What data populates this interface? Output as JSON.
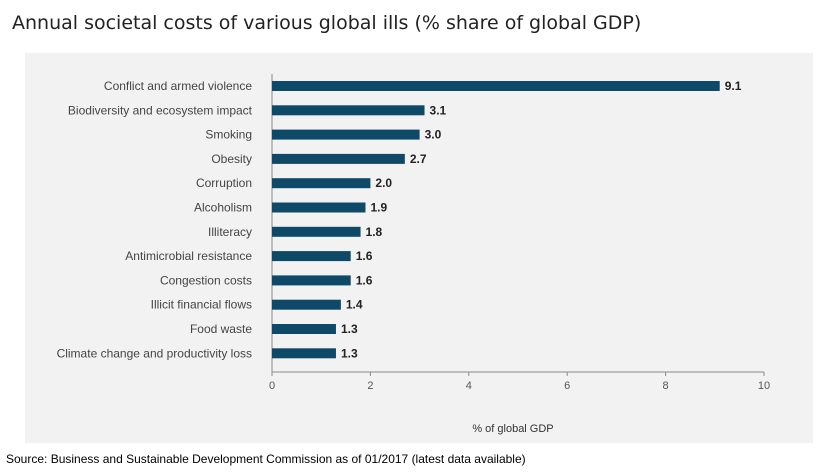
{
  "title": "Annual societal costs of various global ills (% share of global GDP)",
  "source": "Source: Business and Sustainable Development Commission as of 01/2017 (latest data available)",
  "colors": {
    "bar": "#0e4968",
    "panel": "#f2f2f2",
    "axis": "#888888"
  },
  "chart_data": {
    "type": "bar",
    "orientation": "horizontal",
    "categories": [
      "Conflict and armed violence",
      "Biodiversity and ecosystem impact",
      "Smoking",
      "Obesity",
      "Corruption",
      "Alcoholism",
      "Illiteracy",
      "Antimicrobial resistance",
      "Congestion costs",
      "Illicit financial flows",
      "Food waste",
      "Climate change and productivity loss"
    ],
    "values": [
      9.1,
      3.1,
      3.0,
      2.7,
      2.0,
      1.9,
      1.8,
      1.6,
      1.6,
      1.4,
      1.3,
      1.3
    ],
    "value_labels": [
      "9.1",
      "3.1",
      "3.0",
      "2.7",
      "2.0",
      "1.9",
      "1.8",
      "1.6",
      "1.6",
      "1.4",
      "1.3",
      "1.3"
    ],
    "xlabel": "% of global GDP",
    "ylabel": "",
    "xlim": [
      0,
      10
    ],
    "xticks": [
      "0",
      "2",
      "4",
      "6",
      "8",
      "10"
    ],
    "grid": false
  }
}
